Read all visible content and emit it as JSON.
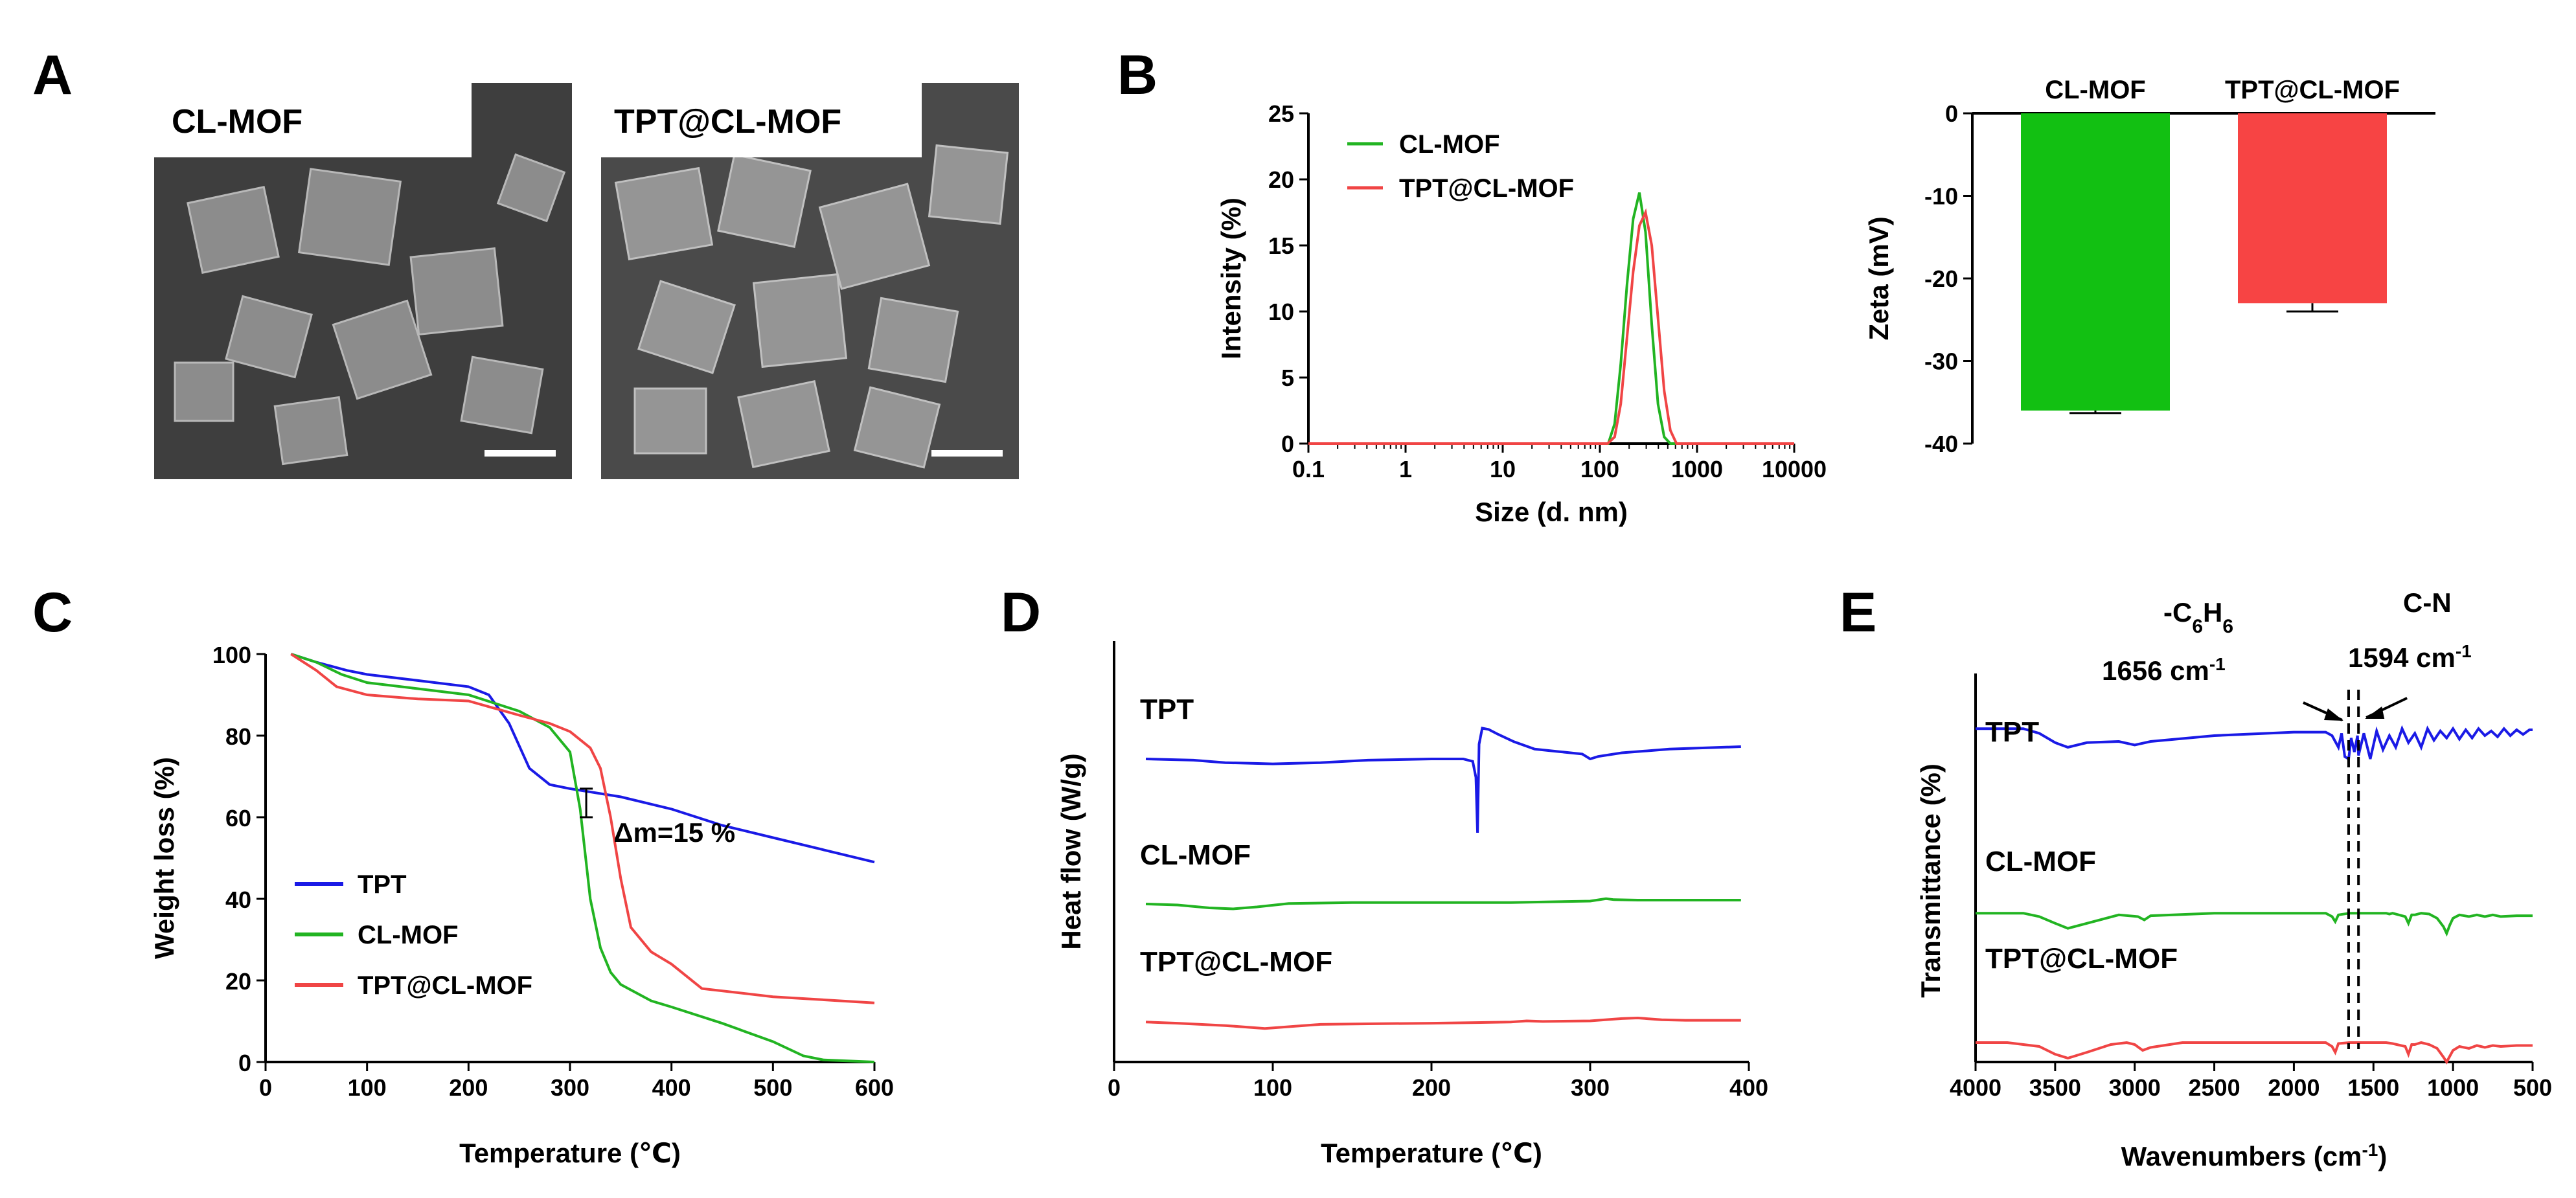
{
  "panels": {
    "A": {
      "letter": "A",
      "images": [
        {
          "label": "CL-MOF"
        },
        {
          "label": "TPT@CL-MOF"
        }
      ]
    },
    "B": {
      "letter": "B"
    },
    "C": {
      "letter": "C"
    },
    "D": {
      "letter": "D"
    },
    "E": {
      "letter": "E"
    }
  },
  "colors": {
    "blue": "#1a1ae6",
    "green": "#22b422",
    "red": "#f04545",
    "bar_green": "#12c012",
    "bar_red": "#f74444"
  },
  "chart_data": [
    {
      "id": "B-left",
      "type": "line",
      "xscale": "log",
      "xlabel": "Size (d. nm)",
      "ylabel": "Intensity (%)",
      "xlim": [
        0.1,
        10000
      ],
      "ylim": [
        0,
        25
      ],
      "xticks": [
        0.1,
        1,
        10,
        100,
        1000,
        10000
      ],
      "xtick_labels": [
        "0.1",
        "1",
        "10",
        "100",
        "1000",
        "10000"
      ],
      "yticks": [
        0,
        5,
        10,
        15,
        20,
        25
      ],
      "legend": [
        "CL-MOF",
        "TPT@CL-MOF"
      ],
      "series": [
        {
          "name": "CL-MOF",
          "color": "#22b422",
          "x": [
            0.1,
            100,
            122,
            142,
            164,
            190,
            220,
            255,
            295,
            342,
            396,
            459,
            531,
            10000
          ],
          "y": [
            0,
            0,
            0,
            1.5,
            6,
            12,
            17,
            19,
            16,
            9,
            3,
            0.5,
            0,
            0
          ]
        },
        {
          "name": "TPT@CL-MOF",
          "color": "#f04545",
          "x": [
            0.1,
            120,
            142,
            164,
            190,
            220,
            255,
            295,
            342,
            396,
            459,
            531,
            615,
            10000
          ],
          "y": [
            0,
            0,
            0.5,
            3,
            8,
            13,
            16.5,
            17.5,
            15,
            9.5,
            4,
            1,
            0,
            0
          ]
        }
      ]
    },
    {
      "id": "B-right",
      "type": "bar",
      "ylabel": "Zeta (mV)",
      "ylim": [
        -40,
        0
      ],
      "yticks": [
        0,
        -10,
        -20,
        -30,
        -40
      ],
      "categories": [
        "CL-MOF",
        "TPT@CL-MOF"
      ],
      "values": [
        -36,
        -23
      ],
      "errors": [
        0.3,
        1.0
      ],
      "colors": [
        "#12c012",
        "#f74444"
      ]
    },
    {
      "id": "C",
      "type": "line",
      "xlabel": "Temperature (℃)",
      "ylabel": "Weight loss (%)",
      "xlim": [
        0,
        600
      ],
      "ylim": [
        0,
        100
      ],
      "xticks": [
        0,
        100,
        200,
        300,
        400,
        500,
        600
      ],
      "yticks": [
        0,
        20,
        40,
        60,
        80,
        100
      ],
      "legend": [
        "TPT",
        "CL-MOF",
        "TPT@CL-MOF"
      ],
      "annotation": "Δm=15 %",
      "series": [
        {
          "name": "TPT",
          "color": "#1a1ae6",
          "x": [
            25,
            50,
            80,
            100,
            150,
            200,
            220,
            240,
            260,
            280,
            300,
            350,
            400,
            450,
            500,
            550,
            600
          ],
          "y": [
            100,
            98,
            96,
            95,
            93.5,
            92,
            90,
            83,
            72,
            68,
            67,
            65,
            62,
            58,
            55,
            52,
            49
          ]
        },
        {
          "name": "CL-MOF",
          "color": "#22b422",
          "x": [
            25,
            50,
            75,
            100,
            150,
            200,
            250,
            280,
            300,
            310,
            320,
            330,
            340,
            350,
            380,
            400,
            450,
            500,
            530,
            550,
            600
          ],
          "y": [
            100,
            98,
            95,
            93,
            91.5,
            90,
            86,
            82,
            76,
            62,
            40,
            28,
            22,
            19,
            15,
            13.5,
            9.5,
            5,
            1.5,
            0.5,
            0
          ]
        },
        {
          "name": "TPT@CL-MOF",
          "color": "#f04545",
          "x": [
            25,
            50,
            70,
            100,
            150,
            200,
            250,
            280,
            300,
            320,
            330,
            340,
            350,
            360,
            380,
            400,
            430,
            500,
            600
          ],
          "y": [
            100,
            96,
            92,
            90,
            89,
            88.5,
            85,
            83,
            81,
            77,
            72,
            60,
            45,
            33,
            27,
            24,
            18,
            16,
            14.5
          ]
        }
      ]
    },
    {
      "id": "D",
      "type": "line",
      "xlabel": "Temperature (℃)",
      "ylabel": "Heat flow (W/g)",
      "xlim": [
        0,
        400
      ],
      "xticks": [
        0,
        100,
        200,
        300,
        400
      ],
      "y_units": "arbitrary (offset traces)",
      "series": [
        {
          "name": "TPT",
          "color": "#1a1ae6",
          "x": [
            20,
            50,
            70,
            100,
            130,
            160,
            200,
            220,
            226,
            228,
            229,
            230,
            232,
            236,
            242,
            252,
            265,
            280,
            295,
            300,
            305,
            320,
            350,
            395
          ],
          "y": [
            70,
            69,
            67,
            66,
            67,
            69,
            70,
            70,
            68,
            55,
            10,
            82,
            95,
            94,
            90,
            84,
            78,
            76,
            74,
            70,
            72,
            75,
            78,
            80
          ]
        },
        {
          "name": "CL-MOF",
          "color": "#22b422",
          "x": [
            20,
            40,
            60,
            75,
            90,
            110,
            150,
            200,
            250,
            300,
            310,
            315,
            330,
            350,
            395
          ],
          "y": [
            32,
            30,
            24,
            22,
            26,
            33,
            35,
            35,
            35,
            38,
            43,
            41,
            40,
            40,
            40
          ]
        },
        {
          "name": "TPT@CL-MOF",
          "color": "#f04545",
          "x": [
            20,
            40,
            70,
            95,
            110,
            130,
            160,
            200,
            250,
            260,
            270,
            300,
            320,
            330,
            345,
            360,
            395
          ],
          "y": [
            13,
            11,
            7,
            2,
            5,
            9,
            10,
            11,
            13,
            15,
            14,
            15,
            19,
            20,
            17,
            16,
            16
          ]
        }
      ],
      "trace_labels": [
        "TPT",
        "CL-MOF",
        "TPT@CL-MOF"
      ]
    },
    {
      "id": "E",
      "type": "line",
      "xlabel": "Wavenumbers (cm-1)",
      "ylabel": "Transmittance (%)",
      "xlim": [
        4000,
        500
      ],
      "xticks": [
        4000,
        3500,
        3000,
        2500,
        2000,
        1500,
        1000,
        500
      ],
      "y_units": "arbitrary (offset traces)",
      "annotations": [
        "-C6H6",
        "1656 cm-1",
        "C-N",
        "1594 cm-1"
      ],
      "series": [
        {
          "name": "TPT",
          "color": "#1a1ae6",
          "x": [
            4000,
            3700,
            3600,
            3500,
            3420,
            3300,
            3100,
            3000,
            2900,
            2500,
            2000,
            1800,
            1760,
            1720,
            1700,
            1680,
            1656,
            1640,
            1620,
            1600,
            1594,
            1560,
            1520,
            1480,
            1440,
            1400,
            1360,
            1320,
            1280,
            1240,
            1200,
            1160,
            1120,
            1080,
            1040,
            1000,
            960,
            920,
            880,
            840,
            800,
            760,
            720,
            680,
            640,
            600,
            560,
            520,
            500
          ],
          "y": [
            86,
            86,
            82,
            74,
            70,
            74,
            75,
            72,
            75,
            80,
            83,
            83,
            80,
            70,
            82,
            62,
            60,
            78,
            66,
            80,
            63,
            82,
            60,
            84,
            68,
            80,
            70,
            86,
            74,
            82,
            70,
            86,
            76,
            84,
            78,
            86,
            77,
            85,
            78,
            86,
            80,
            84,
            79,
            86,
            80,
            85,
            81,
            85,
            85
          ]
        },
        {
          "name": "CL-MOF",
          "color": "#22b422",
          "x": [
            4000,
            3700,
            3600,
            3500,
            3420,
            3300,
            3100,
            2980,
            2940,
            2900,
            2500,
            2000,
            1800,
            1760,
            1740,
            1720,
            1650,
            1600,
            1500,
            1420,
            1400,
            1380,
            1300,
            1280,
            1260,
            1240,
            1200,
            1150,
            1100,
            1060,
            1040,
            1020,
            1000,
            960,
            900,
            850,
            800,
            750,
            700,
            600,
            500
          ],
          "y": [
            46,
            46,
            42,
            34,
            28,
            34,
            44,
            42,
            38,
            43,
            46,
            46,
            46,
            42,
            36,
            44,
            46,
            46,
            46,
            46,
            45,
            46,
            42,
            34,
            44,
            44,
            46,
            45,
            40,
            30,
            22,
            32,
            40,
            44,
            42,
            44,
            42,
            44,
            42,
            43,
            43
          ]
        },
        {
          "name": "TPT@CL-MOF",
          "color": "#f04545",
          "x": [
            4000,
            3800,
            3600,
            3500,
            3420,
            3300,
            3150,
            3050,
            3000,
            2950,
            2900,
            2700,
            2500,
            2000,
            1800,
            1760,
            1740,
            1720,
            1650,
            1600,
            1500,
            1420,
            1380,
            1300,
            1280,
            1260,
            1240,
            1200,
            1150,
            1100,
            1060,
            1040,
            1020,
            1000,
            960,
            900,
            850,
            800,
            750,
            700,
            600,
            500
          ],
          "y": [
            20,
            20,
            16,
            8,
            4,
            10,
            18,
            20,
            18,
            12,
            15,
            20,
            20,
            20,
            20,
            16,
            10,
            19,
            20,
            20,
            20,
            20,
            19,
            16,
            8,
            18,
            18,
            20,
            18,
            14,
            5,
            0,
            6,
            12,
            16,
            14,
            17,
            15,
            17,
            16,
            17,
            17
          ]
        }
      ],
      "trace_labels": [
        "TPT",
        "CL-MOF",
        "TPT@CL-MOF"
      ]
    }
  ]
}
